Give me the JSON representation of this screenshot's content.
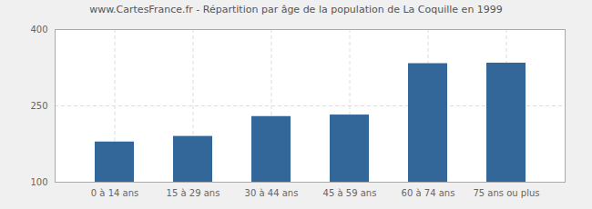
{
  "chart_data": {
    "type": "bar",
    "title": "www.CartesFrance.fr - Répartition par âge de la population de La Coquille en 1999",
    "categories": [
      "0 à 14 ans",
      "15 à 29 ans",
      "30 à 44 ans",
      "45 à 59 ans",
      "60 à 74 ans",
      "75 ans ou plus"
    ],
    "values": [
      179,
      190,
      229,
      232,
      333,
      334
    ],
    "color": "#336699",
    "ylim": [
      100,
      400
    ],
    "yticks": [
      100,
      250,
      400
    ],
    "grid": true
  }
}
